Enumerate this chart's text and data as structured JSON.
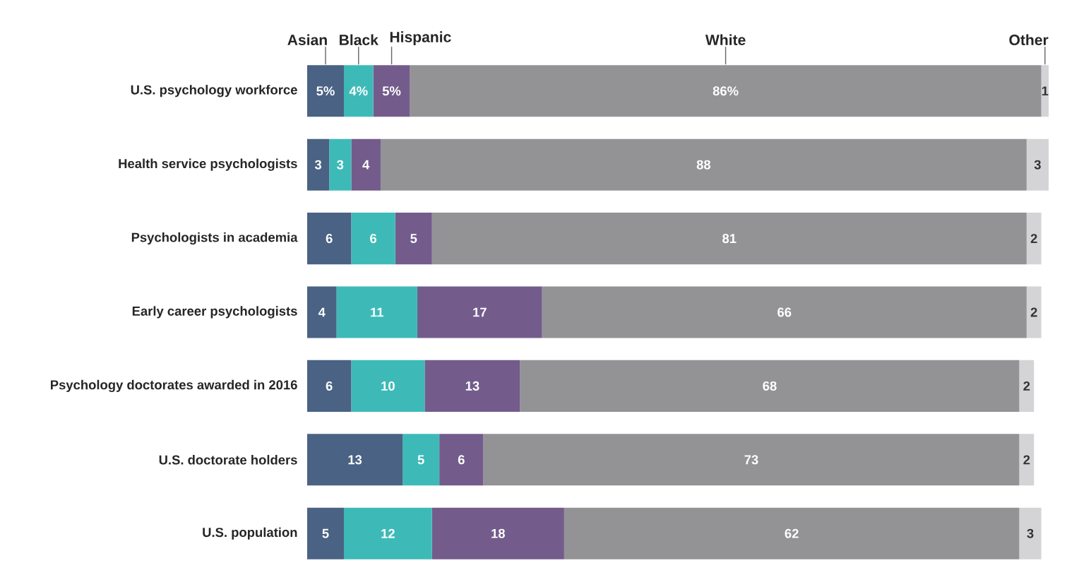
{
  "chart_data": {
    "type": "bar",
    "orientation": "horizontal",
    "stacked": true,
    "legend": "top",
    "tick_labels": "y",
    "categories": [
      "U.S. psychology workforce",
      "Health service psychologists",
      "Psychologists in academia",
      "Early career psychologists",
      "Psychology doctorates awarded in 2016",
      "U.S. doctorate holders",
      "U.S. population"
    ],
    "series": [
      {
        "name": "Asian",
        "color": "#4a6283",
        "values": [
          5,
          3,
          6,
          4,
          6,
          13,
          5
        ],
        "value_labels": [
          "5%",
          "3",
          "6",
          "4",
          "6",
          "13",
          "5"
        ]
      },
      {
        "name": "Black",
        "color": "#3dbab8",
        "values": [
          4,
          3,
          6,
          11,
          10,
          5,
          12
        ],
        "value_labels": [
          "4%",
          "3",
          "6",
          "11",
          "10",
          "5",
          "12"
        ]
      },
      {
        "name": "Hispanic",
        "color": "#735c8c",
        "values": [
          5,
          4,
          5,
          17,
          13,
          6,
          18
        ],
        "value_labels": [
          "5%",
          "4",
          "5",
          "17",
          "13",
          "6",
          "18"
        ]
      },
      {
        "name": "White",
        "color": "#939396",
        "values": [
          86,
          88,
          81,
          66,
          68,
          73,
          62
        ],
        "value_labels": [
          "86%",
          "88",
          "81",
          "66",
          "68",
          "73",
          "62"
        ]
      },
      {
        "name": "Other",
        "color": "#d4d4d6",
        "values": [
          1,
          3,
          2,
          2,
          2,
          2,
          3
        ],
        "value_labels": [
          "1",
          "3",
          "2",
          "2",
          "2",
          "2",
          "3"
        ]
      }
    ]
  }
}
